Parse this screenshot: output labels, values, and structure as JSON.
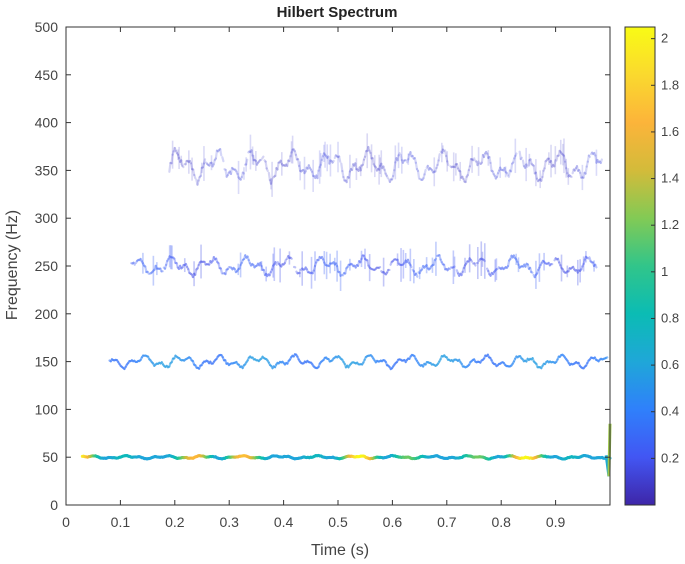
{
  "chart_data": {
    "type": "heatmap",
    "title": "Hilbert Spectrum",
    "xlabel": "Time (s)",
    "ylabel": "Frequency (Hz)",
    "xlim": [
      0,
      1
    ],
    "ylim": [
      0,
      500
    ],
    "xticks": [
      "0",
      "0.1",
      "0.2",
      "0.3",
      "0.4",
      "0.5",
      "0.6",
      "0.7",
      "0.8",
      "0.9"
    ],
    "yticks": [
      "0",
      "50",
      "100",
      "150",
      "200",
      "250",
      "300",
      "350",
      "400",
      "450",
      "500"
    ],
    "grid": false,
    "colorbar": {
      "range": [
        0,
        2.05
      ],
      "ticks": [
        "0.2",
        "0.4",
        "0.6",
        "0.8",
        "1",
        "1.2",
        "1.4",
        "1.6",
        "1.8",
        "2"
      ],
      "colormap": [
        "#3e26a8",
        "#4256f3",
        "#2f80fb",
        "#1fa7d8",
        "#0bbcb4",
        "#31c58a",
        "#82ca55",
        "#d3bb3a",
        "#fcb43a",
        "#fad92e",
        "#f9fb15"
      ]
    },
    "series": [
      {
        "center_freq": 50,
        "t_range": [
          0.03,
          1.0
        ],
        "amplitude": 1.5,
        "jitter_hz": 2
      },
      {
        "center_freq": 150,
        "t_range": [
          0.08,
          0.995
        ],
        "amplitude": 0.45,
        "jitter_hz": 8
      },
      {
        "center_freq": 250,
        "t_range": [
          0.12,
          0.975
        ],
        "amplitude": 0.22,
        "jitter_hz": 12
      },
      {
        "center_freq": 355,
        "t_range": [
          0.19,
          0.985
        ],
        "amplitude": 0.12,
        "jitter_hz": 20
      }
    ]
  }
}
